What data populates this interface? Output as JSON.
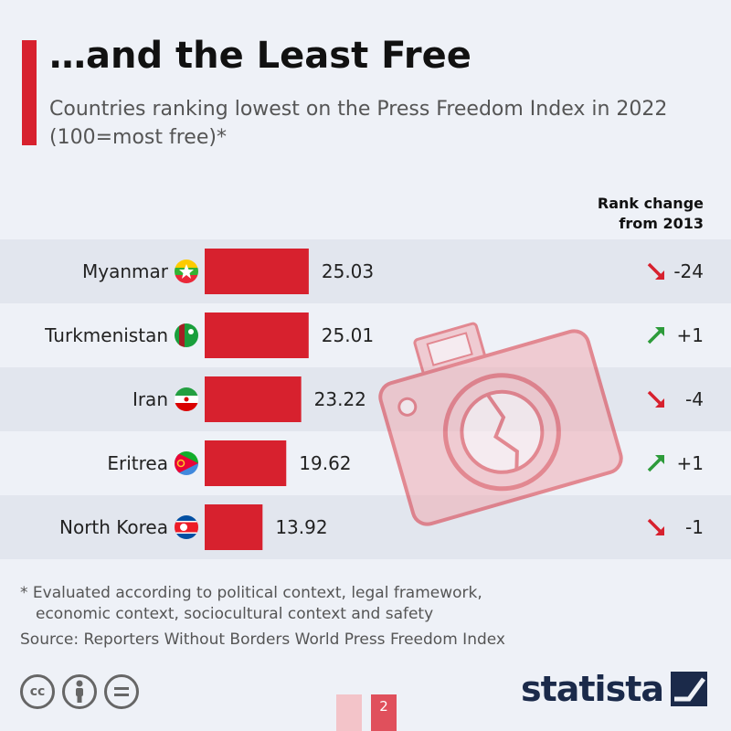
{
  "header": {
    "title": "…and the Least Free",
    "subtitle": "Countries ranking lowest on the Press Freedom Index in 2022 (100=most free)*"
  },
  "rank_header": {
    "line1": "Rank change",
    "line2": "from 2013"
  },
  "chart_data": {
    "type": "bar",
    "orientation": "horizontal",
    "title": "…and the Least Free",
    "subtitle": "Countries ranking lowest on the Press Freedom Index in 2022 (100=most free)*",
    "categories": [
      "Myanmar",
      "Turkmenistan",
      "Iran",
      "Eritrea",
      "North Korea"
    ],
    "values": [
      25.03,
      25.01,
      23.22,
      19.62,
      13.92
    ],
    "value_labels": [
      "25.03",
      "25.01",
      "23.22",
      "19.62",
      "13.92"
    ],
    "rank_change_labels": [
      "-24",
      "+1",
      "-4",
      "+1",
      "-1"
    ],
    "rank_change_direction": [
      "down",
      "up",
      "down",
      "up",
      "down"
    ],
    "xlim": [
      0,
      100
    ],
    "bar_color": "#d7212e",
    "up_color": "#2d9b3a",
    "down_color": "#d7212e"
  },
  "flags": [
    "flag-myanmar-icon",
    "flag-turkmenistan-icon",
    "flag-iran-icon",
    "flag-eritrea-icon",
    "flag-north-korea-icon"
  ],
  "footer": {
    "footnote_line1": "* Evaluated according to political context, legal framework,",
    "footnote_line2": "economic context, sociocultural context and safety",
    "source": "Source: Reporters Without Borders World Press Freedom Index",
    "logo": "statista",
    "cc_icons": [
      "cc-icon",
      "by-icon",
      "nd-icon"
    ],
    "page_label": "2"
  },
  "colors": {
    "accent": "#d7212e",
    "row_alt": "#e2e6ee",
    "background": "#eef1f7"
  }
}
